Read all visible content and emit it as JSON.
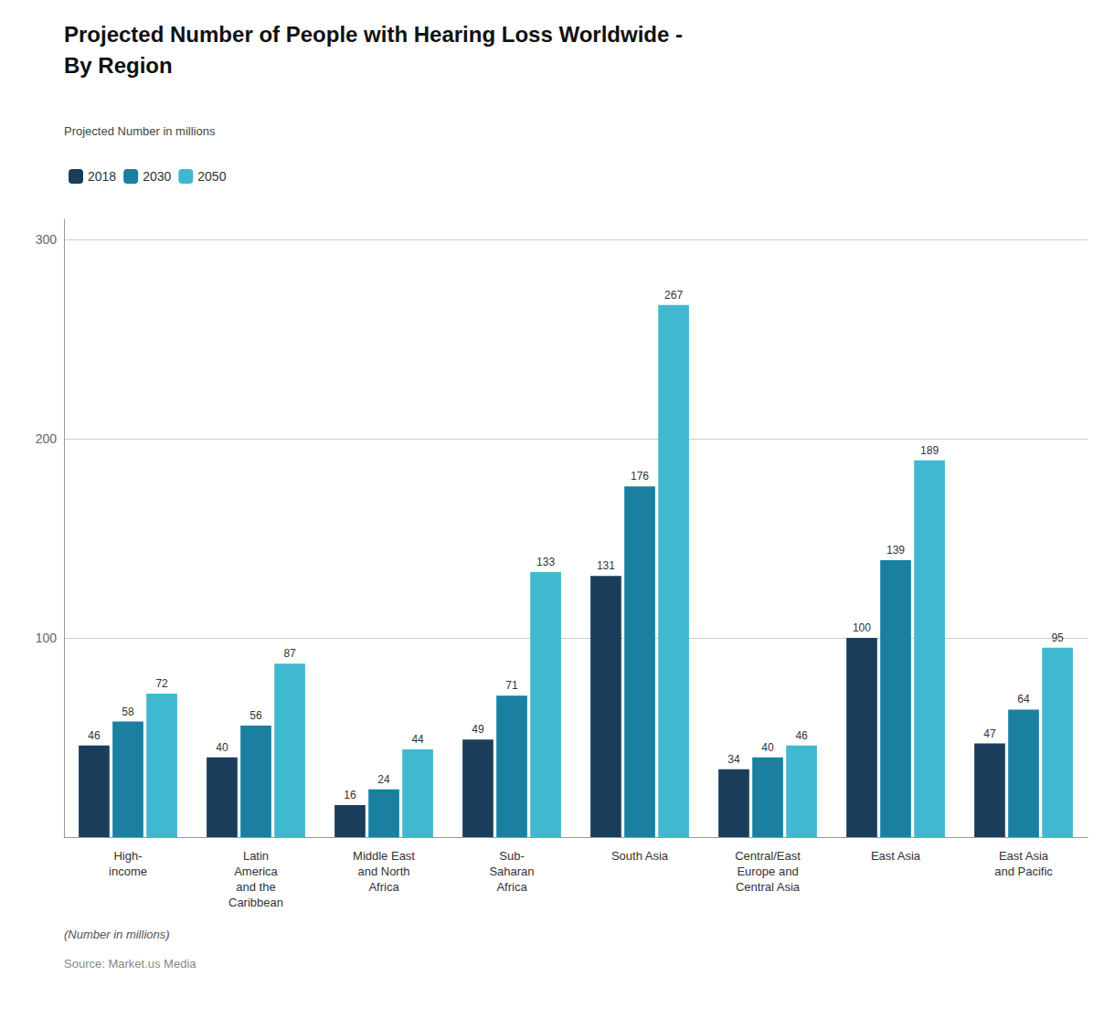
{
  "chart_data": {
    "type": "bar",
    "title": "Projected Number of People with Hearing Loss Worldwide -\nBy Region",
    "ylabel": "Projected Number in millions",
    "annotations": [
      "(Number in millions)",
      "Source: Market.us Media"
    ],
    "categories": [
      "High-\nincome",
      "Latin\nAmerica\nand the\nCaribbean",
      "Middle East\nand North\nAfrica",
      "Sub-\nSaharan\nAfrica",
      "South Asia",
      "Central/East\nEurope and\nCentral Asia",
      "East Asia",
      "East Asia\nand Pacific"
    ],
    "series": [
      {
        "name": "2018",
        "color": "#1a3d5c",
        "values": [
          46,
          40,
          16,
          49,
          131,
          34,
          100,
          47
        ]
      },
      {
        "name": "2030",
        "color": "#1a7fa0",
        "values": [
          58,
          56,
          24,
          71,
          176,
          40,
          139,
          64
        ]
      },
      {
        "name": "2050",
        "color": "#40b8d0",
        "values": [
          72,
          87,
          44,
          133,
          267,
          46,
          189,
          95
        ]
      }
    ],
    "ylim": [
      0,
      310
    ],
    "yticks": [
      100,
      200,
      300
    ],
    "grid": true,
    "legend": "upper left",
    "data_labels": true
  }
}
